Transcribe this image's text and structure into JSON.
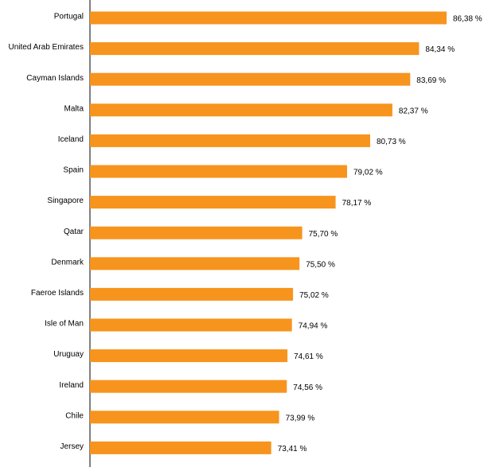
{
  "chart_data": {
    "type": "bar",
    "orientation": "horizontal",
    "title": "",
    "xlabel": "",
    "ylabel": "",
    "categories": [
      "Portugal",
      "United Arab Emirates",
      "Cayman Islands",
      "Malta",
      "Iceland",
      "Spain",
      "Singapore",
      "Qatar",
      "Denmark",
      "Faeroe Islands",
      "Isle of Man",
      "Uruguay",
      "Ireland",
      "Chile",
      "Jersey"
    ],
    "values": [
      86.38,
      84.34,
      83.69,
      82.37,
      80.73,
      79.02,
      78.17,
      75.7,
      75.5,
      75.02,
      74.94,
      74.61,
      74.56,
      73.99,
      73.41
    ],
    "value_labels": [
      "86,38 %",
      "84,34 %",
      "83,69 %",
      "82,37 %",
      "80,73 %",
      "79,02 %",
      "78,17 %",
      "75,70 %",
      "75,50 %",
      "75,02 %",
      "74,94 %",
      "74,61 %",
      "74,56 %",
      "73,99 %",
      "73,41 %"
    ],
    "xlim": [
      60,
      86.38
    ],
    "grid": false,
    "legend": "none",
    "colors": {
      "bar": "#F7941D",
      "axis": "#000000",
      "text": "#000000"
    }
  }
}
